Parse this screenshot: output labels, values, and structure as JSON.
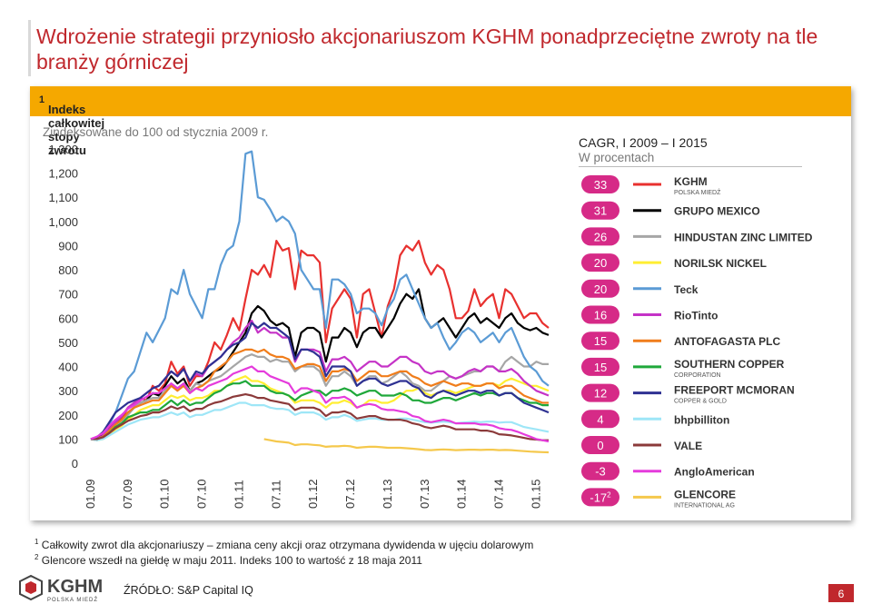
{
  "slide": {
    "title": "Wdrożenie strategii przyniosło akcjonariuszom KGHM ponadprzeciętne zwroty na tle branży górniczej",
    "page_number": "6",
    "source": "ŹRÓDŁO: S&P Capital IQ",
    "footer_logo": {
      "name": "KGHM",
      "sub": "POLSKA MIEDŹ"
    },
    "footnotes": [
      {
        "mark": "1",
        "text": "Całkowity zwrot dla akcjonariuszy – zmiana ceny akcji oraz otrzymana dywidenda w ujęciu dolarowym"
      },
      {
        "mark": "2",
        "text": "Glencore wszedł na giełdę w maju 2011. Indeks 100 to wartość z 18 maja 2011"
      }
    ]
  },
  "panel": {
    "header": "Indeks całkowitej stopy zwrotu",
    "header_sup": "1",
    "subtitle": "Zindeksowane do 100 od stycznia 2009 r.",
    "header_color": "#f5a800"
  },
  "cagr": {
    "title": "CAGR, I 2009 – I 2015",
    "subtitle": "W procentach",
    "badge_color": "#d62a87",
    "rows": [
      {
        "value": "33",
        "color": "#e8312f",
        "logo": "KGHM",
        "logo_sub": "POLSKA MIEDŹ"
      },
      {
        "value": "31",
        "color": "#000000",
        "logo": "GRUPO MEXICO"
      },
      {
        "value": "26",
        "color": "#a6a6a6",
        "logo": "HINDUSTAN ZINC LIMITED"
      },
      {
        "value": "20",
        "color": "#ffee33",
        "logo": "NORILSK NICKEL"
      },
      {
        "value": "20",
        "color": "#5b9bd5",
        "logo": "Teck"
      },
      {
        "value": "16",
        "color": "#c533c7",
        "logo": "RioTinto"
      },
      {
        "value": "15",
        "color": "#f07d1b",
        "logo": "ANTOFAGASTA PLC"
      },
      {
        "value": "15",
        "color": "#1fa83a",
        "logo": "SOUTHERN COPPER",
        "logo_sub": "CORPORATION"
      },
      {
        "value": "12",
        "color": "#2e3192",
        "logo": "FREEPORT MCMORAN",
        "logo_sub": "COPPER & GOLD"
      },
      {
        "value": "4",
        "color": "#9ee6f7",
        "logo": "bhpbilliton"
      },
      {
        "value": "0",
        "color": "#8b3a3a",
        "logo": "VALE"
      },
      {
        "value": "-3",
        "color": "#e53bdc",
        "logo": "AngloAmerican"
      },
      {
        "value": "-17",
        "value_sup": "2",
        "color": "#f5c84c",
        "logo": "GLENCORE",
        "logo_sub": "INTERNATIONAL AG"
      }
    ]
  },
  "chart_data": {
    "type": "line",
    "title": "",
    "xlabel": "",
    "ylabel": "",
    "ylim": [
      0,
      1300
    ],
    "y_ticks": [
      "0",
      "100",
      "200",
      "300",
      "400",
      "500",
      "600",
      "700",
      "800",
      "900",
      "1,000",
      "1,100",
      "1,200",
      "1,300"
    ],
    "y_tick_values": [
      0,
      100,
      200,
      300,
      400,
      500,
      600,
      700,
      800,
      900,
      1000,
      1100,
      1200,
      1300
    ],
    "x_ticks": [
      "01.09",
      "07.09",
      "01.10",
      "07.10",
      "01.11",
      "07.11",
      "01.12",
      "07.12",
      "01.13",
      "07.13",
      "01.14",
      "07.14",
      "01.15"
    ],
    "x_tick_index": [
      0,
      6,
      12,
      18,
      24,
      30,
      36,
      42,
      48,
      54,
      60,
      66,
      72
    ],
    "legend": "right",
    "grid": false,
    "series": [
      {
        "color": "#e8312f",
        "values": [
          100,
          95,
          110,
          150,
          170,
          185,
          230,
          250,
          270,
          260,
          320,
          300,
          330,
          420,
          370,
          400,
          320,
          360,
          360,
          420,
          500,
          470,
          530,
          600,
          550,
          680,
          800,
          780,
          820,
          770,
          920,
          880,
          890,
          720,
          880,
          860,
          860,
          830,
          500,
          640,
          680,
          720,
          680,
          520,
          700,
          720,
          620,
          520,
          650,
          720,
          860,
          900,
          880,
          920,
          830,
          780,
          820,
          800,
          720,
          600,
          600,
          630,
          720,
          650,
          680,
          700,
          600,
          720,
          700,
          650,
          600,
          620,
          620,
          580,
          560
        ]
      },
      {
        "color": "#000000",
        "values": [
          100,
          108,
          115,
          140,
          160,
          180,
          210,
          230,
          250,
          260,
          290,
          280,
          320,
          360,
          330,
          350,
          300,
          330,
          340,
          360,
          380,
          390,
          420,
          460,
          500,
          540,
          620,
          650,
          630,
          590,
          570,
          580,
          560,
          440,
          540,
          560,
          560,
          540,
          420,
          520,
          520,
          560,
          540,
          480,
          540,
          560,
          560,
          520,
          560,
          600,
          660,
          700,
          680,
          720,
          600,
          560,
          580,
          600,
          560,
          520,
          560,
          600,
          620,
          580,
          600,
          580,
          560,
          600,
          620,
          580,
          560,
          550,
          560,
          540,
          530
        ]
      },
      {
        "color": "#a6a6a6",
        "values": [
          100,
          98,
          105,
          130,
          155,
          175,
          200,
          230,
          250,
          260,
          270,
          270,
          300,
          330,
          310,
          330,
          300,
          330,
          320,
          340,
          350,
          360,
          380,
          400,
          420,
          440,
          450,
          440,
          440,
          420,
          430,
          420,
          420,
          380,
          400,
          400,
          400,
          380,
          320,
          360,
          360,
          380,
          360,
          320,
          340,
          360,
          360,
          330,
          340,
          360,
          380,
          360,
          330,
          320,
          300,
          300,
          320,
          340,
          360,
          350,
          360,
          370,
          380,
          380,
          400,
          400,
          380,
          420,
          440,
          420,
          400,
          400,
          420,
          410,
          410
        ]
      },
      {
        "color": "#ffee33",
        "values": [
          100,
          95,
          100,
          120,
          140,
          155,
          180,
          200,
          220,
          230,
          240,
          240,
          260,
          280,
          270,
          280,
          260,
          270,
          270,
          280,
          300,
          300,
          320,
          340,
          350,
          360,
          340,
          340,
          330,
          310,
          300,
          290,
          280,
          250,
          260,
          260,
          260,
          250,
          230,
          250,
          250,
          260,
          250,
          230,
          240,
          260,
          260,
          250,
          250,
          260,
          280,
          300,
          300,
          310,
          290,
          280,
          290,
          300,
          300,
          290,
          300,
          310,
          320,
          320,
          330,
          330,
          320,
          340,
          350,
          340,
          330,
          320,
          320,
          310,
          300
        ]
      },
      {
        "color": "#5b9bd5",
        "values": [
          100,
          95,
          110,
          160,
          210,
          280,
          350,
          380,
          460,
          540,
          500,
          550,
          600,
          720,
          700,
          800,
          700,
          650,
          600,
          720,
          720,
          820,
          880,
          900,
          1000,
          1280,
          1290,
          1100,
          1090,
          1050,
          1000,
          1020,
          1000,
          950,
          800,
          760,
          720,
          720,
          560,
          760,
          760,
          740,
          700,
          620,
          640,
          640,
          620,
          570,
          640,
          680,
          760,
          780,
          720,
          660,
          600,
          560,
          580,
          520,
          470,
          500,
          540,
          560,
          540,
          500,
          520,
          540,
          500,
          540,
          560,
          500,
          440,
          400,
          380,
          340,
          320
        ]
      },
      {
        "color": "#c533c7",
        "values": [
          100,
          100,
          115,
          140,
          170,
          195,
          230,
          250,
          270,
          290,
          310,
          320,
          350,
          380,
          360,
          390,
          340,
          370,
          360,
          400,
          420,
          440,
          470,
          500,
          520,
          560,
          590,
          540,
          560,
          540,
          540,
          520,
          520,
          420,
          470,
          470,
          470,
          460,
          380,
          430,
          430,
          440,
          420,
          380,
          400,
          420,
          420,
          400,
          400,
          420,
          440,
          440,
          420,
          410,
          380,
          370,
          380,
          380,
          360,
          350,
          360,
          380,
          390,
          380,
          400,
          400,
          380,
          380,
          390,
          370,
          340,
          320,
          300,
          290,
          280
        ]
      },
      {
        "color": "#f07d1b",
        "values": [
          100,
          102,
          110,
          135,
          160,
          180,
          210,
          230,
          240,
          250,
          260,
          260,
          290,
          320,
          300,
          320,
          290,
          310,
          320,
          340,
          380,
          400,
          420,
          450,
          460,
          470,
          470,
          460,
          470,
          450,
          440,
          440,
          430,
          390,
          400,
          410,
          410,
          400,
          340,
          380,
          380,
          390,
          380,
          340,
          360,
          380,
          380,
          360,
          360,
          370,
          380,
          380,
          360,
          350,
          330,
          320,
          330,
          340,
          330,
          320,
          330,
          330,
          320,
          320,
          330,
          330,
          310,
          320,
          320,
          300,
          280,
          270,
          260,
          250,
          250
        ]
      },
      {
        "color": "#1fa83a",
        "values": [
          100,
          98,
          105,
          125,
          150,
          165,
          190,
          200,
          210,
          210,
          220,
          220,
          240,
          260,
          240,
          260,
          240,
          250,
          250,
          270,
          290,
          300,
          320,
          330,
          330,
          340,
          320,
          320,
          320,
          300,
          290,
          290,
          280,
          260,
          280,
          290,
          300,
          300,
          280,
          300,
          300,
          310,
          300,
          280,
          290,
          300,
          300,
          280,
          280,
          280,
          290,
          280,
          260,
          260,
          250,
          250,
          260,
          270,
          270,
          260,
          270,
          280,
          290,
          280,
          290,
          290,
          280,
          290,
          290,
          270,
          260,
          250,
          250,
          240,
          240
        ]
      },
      {
        "color": "#2e3192",
        "values": [
          100,
          108,
          130,
          170,
          210,
          230,
          250,
          260,
          270,
          290,
          310,
          320,
          350,
          380,
          360,
          390,
          340,
          380,
          370,
          400,
          420,
          440,
          470,
          490,
          500,
          520,
          580,
          560,
          580,
          560,
          560,
          540,
          520,
          430,
          470,
          470,
          460,
          440,
          360,
          400,
          400,
          400,
          380,
          320,
          340,
          350,
          350,
          330,
          320,
          330,
          340,
          340,
          320,
          310,
          280,
          270,
          290,
          300,
          290,
          280,
          290,
          300,
          300,
          290,
          300,
          300,
          280,
          290,
          290,
          270,
          250,
          240,
          230,
          220,
          210
        ]
      },
      {
        "color": "#9ee6f7",
        "values": [
          100,
          95,
          100,
          115,
          130,
          145,
          160,
          170,
          180,
          185,
          190,
          190,
          200,
          210,
          200,
          210,
          190,
          200,
          200,
          210,
          220,
          220,
          230,
          240,
          250,
          250,
          240,
          240,
          240,
          230,
          225,
          225,
          220,
          200,
          210,
          210,
          210,
          200,
          180,
          190,
          190,
          200,
          190,
          175,
          180,
          185,
          185,
          180,
          180,
          180,
          185,
          185,
          180,
          175,
          170,
          168,
          170,
          172,
          170,
          165,
          168,
          170,
          172,
          170,
          172,
          172,
          168,
          170,
          170,
          160,
          150,
          145,
          140,
          135,
          130
        ]
      },
      {
        "color": "#8b3a3a",
        "values": [
          100,
          100,
          108,
          125,
          145,
          160,
          175,
          185,
          195,
          200,
          210,
          210,
          220,
          235,
          225,
          235,
          215,
          225,
          225,
          240,
          250,
          255,
          265,
          275,
          280,
          285,
          280,
          270,
          270,
          260,
          255,
          250,
          245,
          220,
          230,
          230,
          230,
          220,
          195,
          210,
          210,
          215,
          205,
          185,
          190,
          195,
          195,
          185,
          180,
          180,
          180,
          175,
          165,
          160,
          150,
          145,
          150,
          155,
          150,
          140,
          140,
          140,
          140,
          135,
          135,
          130,
          120,
          118,
          115,
          110,
          105,
          100,
          98,
          95,
          95
        ]
      },
      {
        "color": "#e53bdc",
        "values": [
          100,
          110,
          125,
          155,
          180,
          200,
          225,
          240,
          260,
          275,
          290,
          290,
          310,
          330,
          310,
          330,
          290,
          310,
          300,
          320,
          330,
          340,
          350,
          370,
          380,
          390,
          400,
          380,
          380,
          360,
          350,
          340,
          330,
          290,
          310,
          310,
          300,
          290,
          250,
          270,
          270,
          275,
          260,
          230,
          240,
          245,
          240,
          225,
          220,
          220,
          215,
          210,
          195,
          190,
          175,
          170,
          175,
          180,
          175,
          165,
          165,
          165,
          165,
          160,
          160,
          155,
          145,
          140,
          138,
          130,
          120,
          110,
          100,
          95,
          90
        ]
      },
      {
        "color": "#f5c84c",
        "values": [
          null,
          null,
          null,
          null,
          null,
          null,
          null,
          null,
          null,
          null,
          null,
          null,
          null,
          null,
          null,
          null,
          null,
          null,
          null,
          null,
          null,
          null,
          null,
          null,
          null,
          null,
          null,
          null,
          100,
          95,
          90,
          88,
          85,
          75,
          78,
          78,
          76,
          74,
          68,
          70,
          70,
          72,
          70,
          64,
          66,
          68,
          68,
          66,
          64,
          64,
          64,
          62,
          60,
          58,
          55,
          54,
          56,
          57,
          56,
          54,
          55,
          56,
          56,
          55,
          56,
          56,
          54,
          55,
          54,
          52,
          50,
          48,
          47,
          46,
          45
        ]
      }
    ]
  }
}
